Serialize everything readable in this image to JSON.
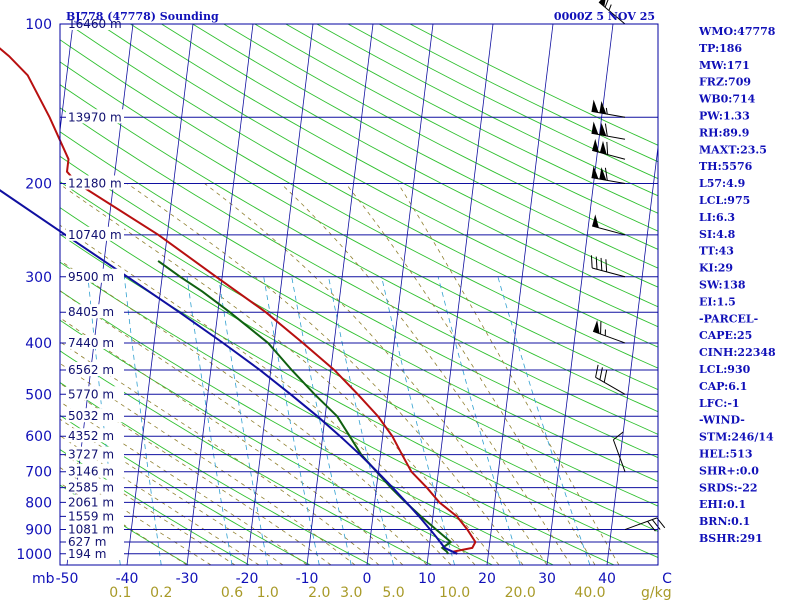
{
  "chart_data": {
    "type": "skew-t",
    "title_left": "BJ778 (47778) Sounding",
    "title_right": "0000Z  5 NOV 25",
    "pressure_unit_label": "mb",
    "mixing_ratio_unit_label": "g/kg",
    "pressure_levels": [
      100,
      200,
      300,
      400,
      500,
      600,
      700,
      800,
      900,
      1000
    ],
    "standard_levels": [
      {
        "p": 100,
        "h": "16460 m"
      },
      {
        "p": 150,
        "h": "13970 m"
      },
      {
        "p": 200,
        "h": "12180 m"
      },
      {
        "p": 250,
        "h": "10740 m"
      },
      {
        "p": 300,
        "h": "9500 m"
      },
      {
        "p": 350,
        "h": "8405 m"
      },
      {
        "p": 400,
        "h": "7440 m"
      },
      {
        "p": 450,
        "h": "6562 m"
      },
      {
        "p": 500,
        "h": "5770 m"
      },
      {
        "p": 550,
        "h": "5032 m"
      },
      {
        "p": 600,
        "h": "4352 m"
      },
      {
        "p": 650,
        "h": "3727 m"
      },
      {
        "p": 700,
        "h": "3146 m"
      },
      {
        "p": 750,
        "h": "2585 m"
      },
      {
        "p": 800,
        "h": "2061 m"
      },
      {
        "p": 850,
        "h": "1559 m"
      },
      {
        "p": 900,
        "h": "1081 m"
      },
      {
        "p": 950,
        "h": "627 m"
      },
      {
        "p": 1000,
        "h": "194 m"
      }
    ],
    "temperature_ticks": [
      "-50",
      "-40",
      "-30",
      "-20",
      "-10",
      "0",
      "10",
      "20",
      "30",
      "40",
      "C"
    ],
    "temperature_tick_values": [
      -50,
      -40,
      -30,
      -20,
      -10,
      0,
      10,
      20,
      30,
      40,
      50
    ],
    "mixing_ratio_labels": [
      {
        "w": 0.1,
        "label": "0.1"
      },
      {
        "w": 0.2,
        "label": "0.2"
      },
      {
        "w": 0.6,
        "label": "0.6"
      },
      {
        "w": 1.0,
        "label": "1.0"
      },
      {
        "w": 2.0,
        "label": "2.0"
      },
      {
        "w": 3.0,
        "label": "3.0"
      },
      {
        "w": 5.0,
        "label": "5.0"
      },
      {
        "w": 10.0,
        "label": "10.0"
      },
      {
        "w": 20.0,
        "label": "20.0"
      },
      {
        "w": 40.0,
        "label": "40.0"
      }
    ],
    "xlim_surface_temp": [
      -50,
      50
    ],
    "ylim_pressure": [
      1050,
      100
    ],
    "series": [
      {
        "name": "temperature",
        "color": "#b81010",
        "points": [
          [
            1000,
            14.8
          ],
          [
            990,
            14.2
          ],
          [
            975,
            17.2
          ],
          [
            950,
            17.6
          ],
          [
            900,
            16.0
          ],
          [
            850,
            14.0
          ],
          [
            800,
            10.8
          ],
          [
            750,
            8.4
          ],
          [
            700,
            5.5
          ],
          [
            650,
            3.6
          ],
          [
            600,
            1.6
          ],
          [
            550,
            -1.2
          ],
          [
            500,
            -5.0
          ],
          [
            450,
            -9.4
          ],
          [
            400,
            -15.2
          ],
          [
            350,
            -22.0
          ],
          [
            300,
            -31.0
          ],
          [
            250,
            -41.5
          ],
          [
            200,
            -56.0
          ],
          [
            190,
            -58.0
          ],
          [
            180,
            -58.0
          ],
          [
            150,
            -62.0
          ],
          [
            125,
            -66.5
          ],
          [
            115,
            -70.0
          ],
          [
            100,
            -77.0
          ]
        ]
      },
      {
        "name": "dewpoint",
        "color": "#106010",
        "points": [
          [
            1000,
            13.3
          ],
          [
            990,
            13.0
          ],
          [
            975,
            12.2
          ],
          [
            950,
            13.5
          ],
          [
            900,
            10.8
          ],
          [
            850,
            8.0
          ],
          [
            800,
            5.2
          ],
          [
            750,
            2.4
          ],
          [
            700,
            -0.3
          ],
          [
            650,
            -3.2
          ],
          [
            600,
            -5.5
          ],
          [
            550,
            -8.0
          ],
          [
            500,
            -12.2
          ],
          [
            450,
            -16.5
          ],
          [
            400,
            -21.0
          ],
          [
            350,
            -28.0
          ],
          [
            320,
            -33.0
          ],
          [
            300,
            -37.0
          ],
          [
            280,
            -41.0
          ]
        ]
      },
      {
        "name": "parcel",
        "color": "#1010a0",
        "points": [
          [
            1000,
            14.8
          ],
          [
            975,
            12.6
          ],
          [
            930,
            11.0
          ],
          [
            900,
            9.8
          ],
          [
            850,
            7.7
          ],
          [
            800,
            5.3
          ],
          [
            750,
            2.7
          ],
          [
            700,
            -0.2
          ],
          [
            650,
            -3.4
          ],
          [
            600,
            -7.1
          ],
          [
            550,
            -11.3
          ],
          [
            500,
            -16.2
          ],
          [
            450,
            -21.8
          ],
          [
            400,
            -28.5
          ],
          [
            350,
            -36.4
          ],
          [
            300,
            -45.8
          ],
          [
            250,
            -57.0
          ],
          [
            200,
            -70.6
          ],
          [
            150,
            -87.5
          ]
        ]
      }
    ],
    "wind_barbs": [
      {
        "p": 100,
        "dir": 310,
        "spd": 65
      },
      {
        "p": 150,
        "dir": 280,
        "spd": 105
      },
      {
        "p": 165,
        "dir": 280,
        "spd": 110
      },
      {
        "p": 180,
        "dir": 285,
        "spd": 110
      },
      {
        "p": 200,
        "dir": 280,
        "spd": 110
      },
      {
        "p": 250,
        "dir": 285,
        "spd": 50
      },
      {
        "p": 300,
        "dir": 285,
        "spd": 40
      },
      {
        "p": 400,
        "dir": 290,
        "spd": 65
      },
      {
        "p": 500,
        "dir": 300,
        "spd": 30
      },
      {
        "p": 700,
        "dir": 340,
        "spd": 10
      },
      {
        "p": 900,
        "dir": 70,
        "spd": 30
      }
    ],
    "indices": [
      "WMO:47778",
      "TP:186",
      "MW:171",
      "FRZ:709",
      "WB0:714",
      "PW:1.33",
      "RH:89.9",
      "MAXT:23.5",
      "TH:5576",
      "L57:4.9",
      "LCL:975",
      "LI:6.3",
      "SI:4.8",
      "TT:43",
      "KI:29",
      "SW:138",
      "EI:1.5",
      "-PARCEL-",
      "CAPE:25",
      "CINH:22348",
      "LCL:930",
      "CAP:6.1",
      "LFC:-1",
      "-WIND-",
      "STM:246/14",
      "HEL:513",
      "SHR+:0.0",
      "SRDS:-22",
      "EHI:0.1",
      "BRN:0.1",
      "BSHR:291"
    ]
  }
}
